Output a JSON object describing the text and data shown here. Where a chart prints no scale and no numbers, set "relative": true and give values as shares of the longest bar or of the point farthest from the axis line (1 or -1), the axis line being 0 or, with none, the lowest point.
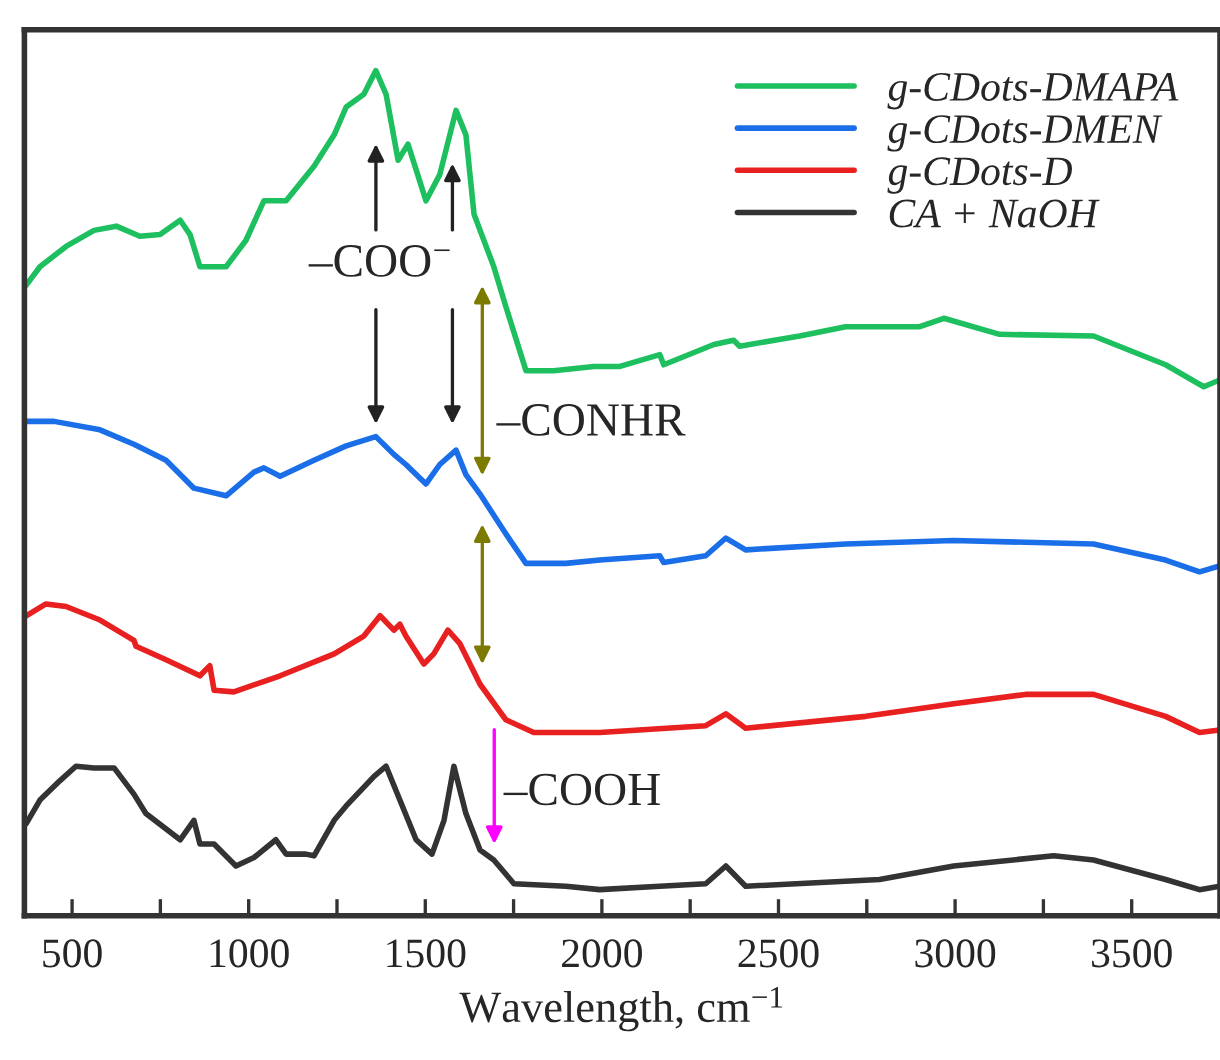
{
  "chart_data": {
    "type": "line",
    "relative": true,
    "xlabel": "Wavelength, cm$^{−1}$",
    "xlim": [
      365,
      3750
    ],
    "xticks": [
      500,
      {
        "value": 750,
        "label": null
      },
      1000,
      {
        "value": 1250,
        "label": null
      },
      1500,
      {
        "value": 1750,
        "label": null
      },
      2000,
      {
        "value": 2250,
        "label": null
      },
      2500,
      {
        "value": 2750,
        "label": null
      },
      3000,
      {
        "value": 3250,
        "label": null
      },
      3500
    ],
    "tick_labels": "x",
    "grid": false,
    "legend": "top right",
    "marker": "none",
    "line_style": "solid",
    "annotations": [
      "–COO$^{−}$",
      "–CONHR",
      "–COOH"
    ],
    "series": [
      {
        "name": "g-CDots-DMAPA",
        "color": "#1dbf5f",
        "x": [
          368,
          409,
          483,
          562,
          625,
          692,
          749,
          806,
          834,
          862,
          936,
          992,
          1043,
          1106,
          1185,
          1242,
          1276,
          1326,
          1360,
          1389,
          1423,
          1451,
          1502,
          1541,
          1587,
          1615,
          1638,
          1694,
          1728,
          1785,
          1864,
          1977,
          1994,
          2051,
          2164,
          2175,
          2317,
          2373,
          2390,
          2560,
          2690,
          2900,
          2968,
          3126,
          3392,
          3596,
          3704,
          3749
        ],
        "values": [
          0.745,
          0.768,
          0.792,
          0.811,
          0.816,
          0.804,
          0.806,
          0.823,
          0.806,
          0.768,
          0.768,
          0.799,
          0.846,
          0.846,
          0.887,
          0.924,
          0.957,
          0.972,
          1.0,
          0.972,
          0.894,
          0.913,
          0.846,
          0.877,
          0.953,
          0.924,
          0.83,
          0.768,
          0.721,
          0.645,
          0.645,
          0.65,
          0.65,
          0.65,
          0.664,
          0.652,
          0.676,
          0.681,
          0.674,
          0.686,
          0.697,
          0.697,
          0.707,
          0.688,
          0.686,
          0.652,
          0.626,
          0.634
        ]
      },
      {
        "name": "g-CDots-DMEN",
        "color": "#1a6fe8",
        "x": [
          370,
          449,
          579,
          675,
          766,
          845,
          936,
          1015,
          1043,
          1089,
          1185,
          1276,
          1360,
          1411,
          1445,
          1502,
          1541,
          1587,
          1615,
          1655,
          1728,
          1785,
          1898,
          1994,
          2164,
          2175,
          2294,
          2351,
          2407,
          2690,
          2996,
          3392,
          3596,
          3692,
          3749
        ],
        "values": [
          0.585,
          0.585,
          0.575,
          0.558,
          0.539,
          0.506,
          0.497,
          0.525,
          0.53,
          0.52,
          0.539,
          0.556,
          0.567,
          0.546,
          0.534,
          0.511,
          0.534,
          0.551,
          0.522,
          0.499,
          0.452,
          0.417,
          0.417,
          0.421,
          0.426,
          0.418,
          0.426,
          0.447,
          0.433,
          0.44,
          0.444,
          0.44,
          0.421,
          0.407,
          0.414
        ]
      },
      {
        "name": "g-CDots-D",
        "color": "#e8201f",
        "x": [
          370,
          426,
          483,
          579,
          675,
          681,
          766,
          862,
          890,
          902,
          958,
          1089,
          1242,
          1326,
          1372,
          1411,
          1428,
          1445,
          1496,
          1524,
          1564,
          1598,
          1655,
          1728,
          1807,
          1994,
          2294,
          2351,
          2407,
          2747,
          2996,
          3200,
          3392,
          3596,
          3692,
          3749
        ],
        "values": [
          0.355,
          0.369,
          0.366,
          0.35,
          0.326,
          0.319,
          0.303,
          0.284,
          0.296,
          0.267,
          0.265,
          0.284,
          0.31,
          0.331,
          0.355,
          0.338,
          0.345,
          0.331,
          0.298,
          0.31,
          0.338,
          0.322,
          0.274,
          0.232,
          0.217,
          0.217,
          0.225,
          0.239,
          0.222,
          0.236,
          0.251,
          0.262,
          0.262,
          0.236,
          0.217,
          0.22
        ]
      },
      {
        "name": "CA + NaOH",
        "color": "#333333",
        "x": [
          370,
          409,
          466,
          511,
          562,
          619,
          675,
          709,
          806,
          845,
          862,
          902,
          964,
          1015,
          1077,
          1106,
          1162,
          1185,
          1242,
          1276,
          1355,
          1389,
          1428,
          1474,
          1519,
          1553,
          1581,
          1615,
          1655,
          1694,
          1751,
          1898,
          1994,
          2164,
          2294,
          2351,
          2407,
          2786,
          2996,
          3279,
          3392,
          3596,
          3692,
          3749
        ],
        "values": [
          0.109,
          0.137,
          0.16,
          0.177,
          0.175,
          0.175,
          0.144,
          0.121,
          0.09,
          0.113,
          0.085,
          0.085,
          0.059,
          0.069,
          0.09,
          0.073,
          0.073,
          0.071,
          0.113,
          0.13,
          0.165,
          0.177,
          0.137,
          0.09,
          0.073,
          0.113,
          0.177,
          0.121,
          0.078,
          0.066,
          0.038,
          0.035,
          0.031,
          0.035,
          0.038,
          0.059,
          0.035,
          0.043,
          0.059,
          0.071,
          0.066,
          0.043,
          0.031,
          0.035
        ]
      }
    ]
  }
}
